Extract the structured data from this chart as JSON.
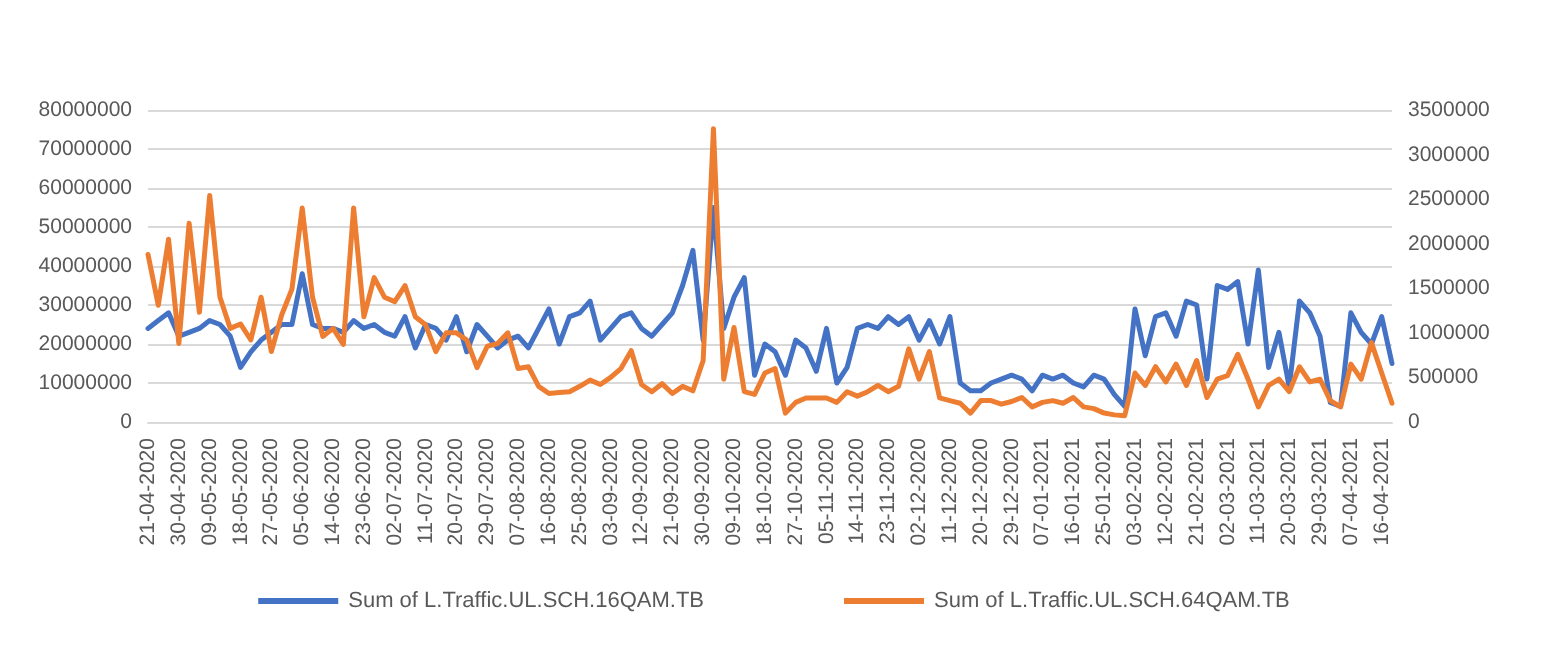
{
  "chart_data": {
    "type": "line",
    "categories": [
      "21-04-2020",
      null,
      null,
      "30-04-2020",
      null,
      null,
      "09-05-2020",
      null,
      null,
      "18-05-2020",
      null,
      null,
      "27-05-2020",
      null,
      null,
      "05-06-2020",
      null,
      null,
      "14-06-2020",
      null,
      null,
      "23-06-2020",
      null,
      null,
      "02-07-2020",
      null,
      null,
      "11-07-2020",
      null,
      null,
      "20-07-2020",
      null,
      null,
      "29-07-2020",
      null,
      null,
      "07-08-2020",
      null,
      null,
      "16-08-2020",
      null,
      null,
      "25-08-2020",
      null,
      null,
      "03-09-2020",
      null,
      null,
      "12-09-2020",
      null,
      null,
      "21-09-2020",
      null,
      null,
      "30-09-2020",
      null,
      null,
      "09-10-2020",
      null,
      null,
      "18-10-2020",
      null,
      null,
      "27-10-2020",
      null,
      null,
      "05-11-2020",
      null,
      null,
      "14-11-2020",
      null,
      null,
      "23-11-2020",
      null,
      null,
      "02-12-2020",
      null,
      null,
      "11-12-2020",
      null,
      null,
      "20-12-2020",
      null,
      null,
      "29-12-2020",
      null,
      null,
      "07-01-2021",
      null,
      null,
      "16-01-2021",
      null,
      null,
      "25-01-2021",
      null,
      null,
      "03-02-2021",
      null,
      null,
      "12-02-2021",
      null,
      null,
      "21-02-2021",
      null,
      null,
      "02-03-2021",
      null,
      null,
      "11-03-2021",
      null,
      null,
      "20-03-2021",
      null,
      null,
      "29-03-2021",
      null,
      null,
      "07-04-2021",
      null,
      null,
      "16-04-2021",
      null
    ],
    "series": [
      {
        "name": "Sum of L.Traffic.UL.SCH.16QAM.TB",
        "color": "#4472c4",
        "values": [
          24000000,
          26000000,
          28000000,
          22000000,
          23000000,
          24000000,
          26000000,
          25000000,
          22000000,
          14000000,
          18000000,
          21000000,
          23000000,
          25000000,
          25000000,
          38000000,
          25000000,
          24000000,
          24000000,
          23000000,
          26000000,
          24000000,
          25000000,
          23000000,
          22000000,
          27000000,
          19000000,
          25000000,
          24000000,
          21000000,
          27000000,
          18000000,
          25000000,
          22000000,
          19000000,
          21000000,
          22000000,
          19000000,
          24000000,
          29000000,
          20000000,
          27000000,
          28000000,
          31000000,
          21000000,
          24000000,
          27000000,
          28000000,
          24000000,
          22000000,
          25000000,
          28000000,
          35000000,
          44000000,
          21000000,
          55000000,
          24000000,
          32000000,
          37000000,
          12000000,
          20000000,
          18000000,
          12000000,
          21000000,
          19000000,
          13000000,
          24000000,
          10000000,
          14000000,
          24000000,
          25000000,
          24000000,
          27000000,
          25000000,
          27000000,
          21000000,
          26000000,
          20000000,
          27000000,
          10000000,
          8000000,
          8000000,
          10000000,
          11000000,
          12000000,
          11000000,
          8000000,
          12000000,
          11000000,
          12000000,
          10000000,
          9000000,
          12000000,
          11000000,
          7000000,
          4000000,
          29000000,
          17000000,
          27000000,
          28000000,
          22000000,
          31000000,
          30000000,
          11000000,
          35000000,
          34000000,
          36000000,
          20000000,
          39000000,
          14000000,
          23000000,
          9000000,
          31000000,
          28000000,
          22000000,
          5000000,
          4000000,
          28000000,
          23000000,
          20000000,
          27000000,
          15000000
        ]
      },
      {
        "name": "Sum of L.Traffic.UL.SCH.64QAM.TB",
        "color": "#ed7d31",
        "axis": "y2",
        "values": [
          1880000,
          1310000,
          2050000,
          880000,
          2230000,
          1230000,
          2540000,
          1400000,
          1050000,
          1100000,
          920000,
          1400000,
          790000,
          1200000,
          1490000,
          2400000,
          1400000,
          960000,
          1050000,
          870000,
          2400000,
          1180000,
          1620000,
          1400000,
          1350000,
          1530000,
          1180000,
          1090000,
          790000,
          1000000,
          1000000,
          920000,
          610000,
          850000,
          880000,
          1000000,
          600000,
          620000,
          400000,
          320000,
          330000,
          340000,
          400000,
          470000,
          420000,
          500000,
          600000,
          800000,
          420000,
          340000,
          430000,
          320000,
          400000,
          350000,
          690000,
          3290000,
          480000,
          1060000,
          340000,
          310000,
          550000,
          600000,
          100000,
          220000,
          270000,
          270000,
          270000,
          220000,
          340000,
          290000,
          340000,
          410000,
          340000,
          400000,
          820000,
          480000,
          790000,
          270000,
          240000,
          210000,
          100000,
          240000,
          240000,
          200000,
          230000,
          275000,
          170000,
          220000,
          240000,
          210000,
          275000,
          170000,
          150000,
          100000,
          80000,
          70000,
          550000,
          410000,
          620000,
          450000,
          650000,
          410000,
          690000,
          275000,
          480000,
          520000,
          760000,
          480000,
          170000,
          410000,
          480000,
          340000,
          620000,
          450000,
          480000,
          240000,
          170000,
          650000,
          480000,
          890000,
          550000,
          210000
        ]
      }
    ],
    "ylim": [
      0,
      80000000
    ],
    "yticks": [
      0,
      10000000,
      20000000,
      30000000,
      40000000,
      50000000,
      60000000,
      70000000,
      80000000
    ],
    "y2lim": [
      0,
      3500000
    ],
    "y2ticks": [
      0,
      500000,
      1000000,
      1500000,
      2000000,
      2500000,
      3000000,
      3500000
    ],
    "grid": "y",
    "legend": "bottom",
    "marker": "none",
    "line_style": "solid"
  }
}
